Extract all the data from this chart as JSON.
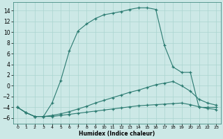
{
  "xlabel": "Humidex (Indice chaleur)",
  "bg_color": "#cce8e6",
  "line_color": "#2a7a70",
  "grid_color": "#aad4d0",
  "ylim": [
    -7,
    15.5
  ],
  "xlim": [
    -0.5,
    23.5
  ],
  "yticks": [
    -6,
    -4,
    -2,
    0,
    2,
    4,
    6,
    8,
    10,
    12,
    14
  ],
  "xticks": [
    0,
    1,
    2,
    3,
    4,
    5,
    6,
    7,
    8,
    9,
    10,
    11,
    12,
    13,
    14,
    15,
    16,
    17,
    18,
    19,
    20,
    21,
    22,
    23
  ],
  "line1_x": [
    0,
    1,
    2,
    3,
    4,
    5,
    6,
    7,
    8,
    9,
    10,
    11,
    12,
    13,
    14,
    15,
    16,
    17,
    18,
    19,
    20,
    21,
    22,
    23
  ],
  "line1_y": [
    -4.0,
    -5.0,
    -5.7,
    -5.7,
    -3.2,
    1.0,
    6.5,
    10.2,
    11.5,
    12.5,
    13.2,
    13.5,
    13.8,
    14.2,
    14.5,
    14.5,
    14.2,
    7.5,
    3.5,
    2.5,
    2.5,
    -4.0,
    -4.0,
    -4.0
  ],
  "line2_x": [
    0,
    1,
    2,
    3,
    4,
    5,
    6,
    7,
    8,
    9,
    10,
    11,
    12,
    13,
    14,
    15,
    16,
    17,
    18,
    19,
    20,
    21,
    22,
    23
  ],
  "line2_y": [
    -4.0,
    -5.0,
    -5.7,
    -5.7,
    -5.5,
    -5.2,
    -4.8,
    -4.3,
    -3.8,
    -3.2,
    -2.7,
    -2.2,
    -1.7,
    -1.2,
    -0.8,
    -0.3,
    0.2,
    0.5,
    0.8,
    0.0,
    -1.0,
    -2.5,
    -3.2,
    -3.6
  ],
  "line3_x": [
    0,
    1,
    2,
    3,
    4,
    5,
    6,
    7,
    8,
    9,
    10,
    11,
    12,
    13,
    14,
    15,
    16,
    17,
    18,
    19,
    20,
    21,
    22,
    23
  ],
  "line3_y": [
    -4.0,
    -5.0,
    -5.7,
    -5.7,
    -5.7,
    -5.5,
    -5.3,
    -5.1,
    -4.9,
    -4.7,
    -4.5,
    -4.3,
    -4.1,
    -3.9,
    -3.7,
    -3.6,
    -3.5,
    -3.4,
    -3.3,
    -3.2,
    -3.5,
    -3.9,
    -4.2,
    -4.4
  ]
}
